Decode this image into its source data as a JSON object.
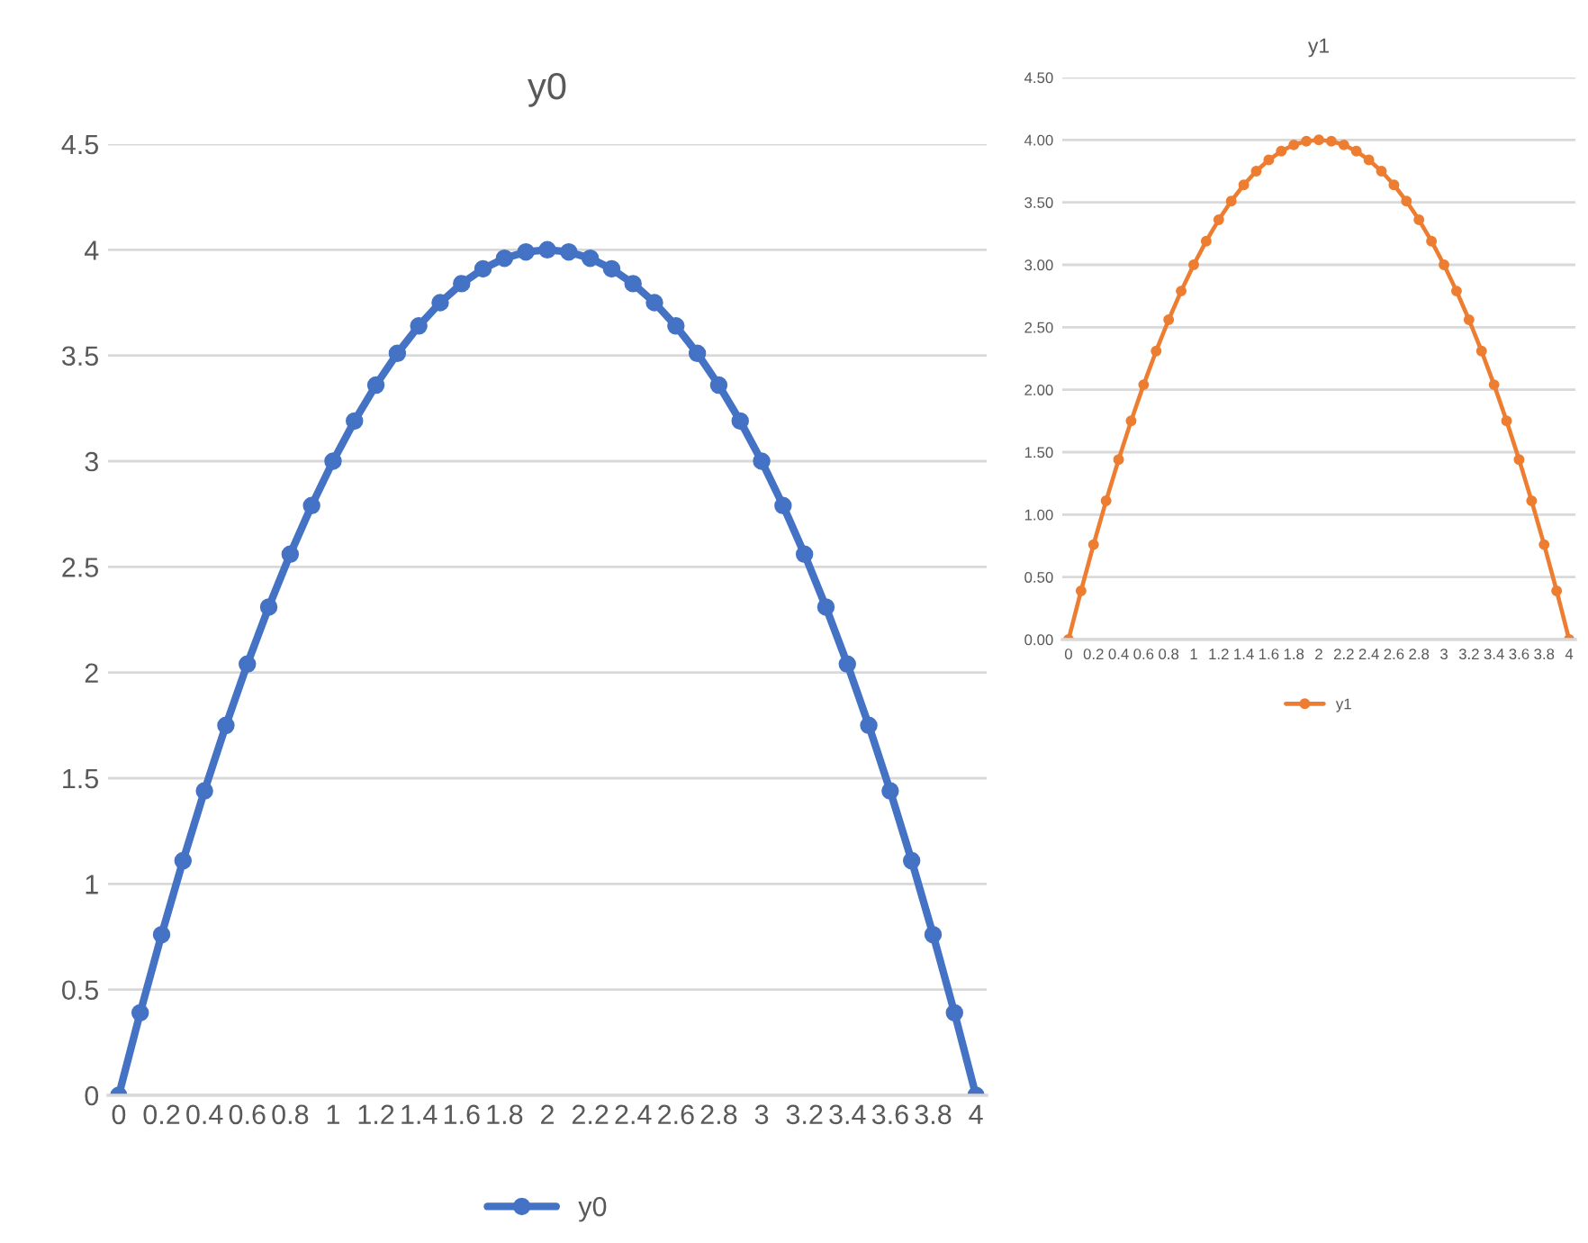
{
  "chart_data": [
    {
      "type": "line",
      "title": "y0",
      "categories": [
        "0",
        null,
        "0.2",
        null,
        "0.4",
        null,
        "0.6",
        null,
        "0.8",
        null,
        "1",
        null,
        "1.2",
        null,
        "1.4",
        null,
        "1.6",
        null,
        "1.8",
        null,
        "2",
        null,
        "2.2",
        null,
        "2.4",
        null,
        "2.6",
        null,
        "2.8",
        null,
        "3",
        null,
        "3.2",
        null,
        "3.4",
        null,
        "3.6",
        null,
        "3.8",
        null,
        "4"
      ],
      "series": [
        {
          "name": "y0",
          "color": "#4472c4",
          "values": [
            0,
            0.39,
            0.76,
            1.11,
            1.44,
            1.75,
            2.04,
            2.31,
            2.56,
            2.79,
            3,
            3.19,
            3.36,
            3.51,
            3.64,
            3.75,
            3.84,
            3.91,
            3.96,
            3.99,
            4,
            3.99,
            3.96,
            3.91,
            3.84,
            3.75,
            3.64,
            3.51,
            3.36,
            3.19,
            3,
            2.79,
            2.56,
            2.31,
            2.04,
            1.75,
            1.44,
            1.11,
            0.76,
            0.39,
            0
          ]
        }
      ],
      "ylim": [
        0,
        4.5
      ],
      "yticks": [
        0,
        0.5,
        1,
        1.5,
        2,
        2.5,
        3,
        3.5,
        4,
        4.5
      ],
      "grid": "y",
      "legend": "bottom",
      "marker": "circle",
      "line_style": "solid"
    },
    {
      "type": "line",
      "title": "y1",
      "categories": [
        "0",
        null,
        "0.2",
        null,
        "0.4",
        null,
        "0.6",
        null,
        "0.8",
        null,
        "1",
        null,
        "1.2",
        null,
        "1.4",
        null,
        "1.6",
        null,
        "1.8",
        null,
        "2",
        null,
        "2.2",
        null,
        "2.4",
        null,
        "2.6",
        null,
        "2.8",
        null,
        "3",
        null,
        "3.2",
        null,
        "3.4",
        null,
        "3.6",
        null,
        "3.8",
        null,
        "4"
      ],
      "series": [
        {
          "name": "y1",
          "color": "#ed7d31",
          "values": [
            0,
            0.39,
            0.76,
            1.11,
            1.44,
            1.75,
            2.04,
            2.31,
            2.56,
            2.79,
            3,
            3.19,
            3.36,
            3.51,
            3.64,
            3.75,
            3.84,
            3.91,
            3.96,
            3.99,
            4,
            3.99,
            3.96,
            3.91,
            3.84,
            3.75,
            3.64,
            3.51,
            3.36,
            3.19,
            3,
            2.79,
            2.56,
            2.31,
            2.04,
            1.75,
            1.44,
            1.11,
            0.76,
            0.39,
            0
          ]
        }
      ],
      "ylim": [
        0,
        4.5
      ],
      "yticks": [
        {
          "value": 0,
          "label": "0.00"
        },
        {
          "value": 0.5,
          "label": "0.50"
        },
        {
          "value": 1,
          "label": "1.00"
        },
        {
          "value": 1.5,
          "label": "1.50"
        },
        {
          "value": 2,
          "label": "2.00"
        },
        {
          "value": 2.5,
          "label": "2.50"
        },
        {
          "value": 3,
          "label": "3.00"
        },
        {
          "value": 3.5,
          "label": "3.50"
        },
        {
          "value": 4,
          "label": "4.00"
        },
        {
          "value": 4.5,
          "label": "4.50"
        }
      ],
      "grid": "y",
      "legend": "bottom",
      "marker": "circle",
      "line_style": "solid"
    }
  ]
}
